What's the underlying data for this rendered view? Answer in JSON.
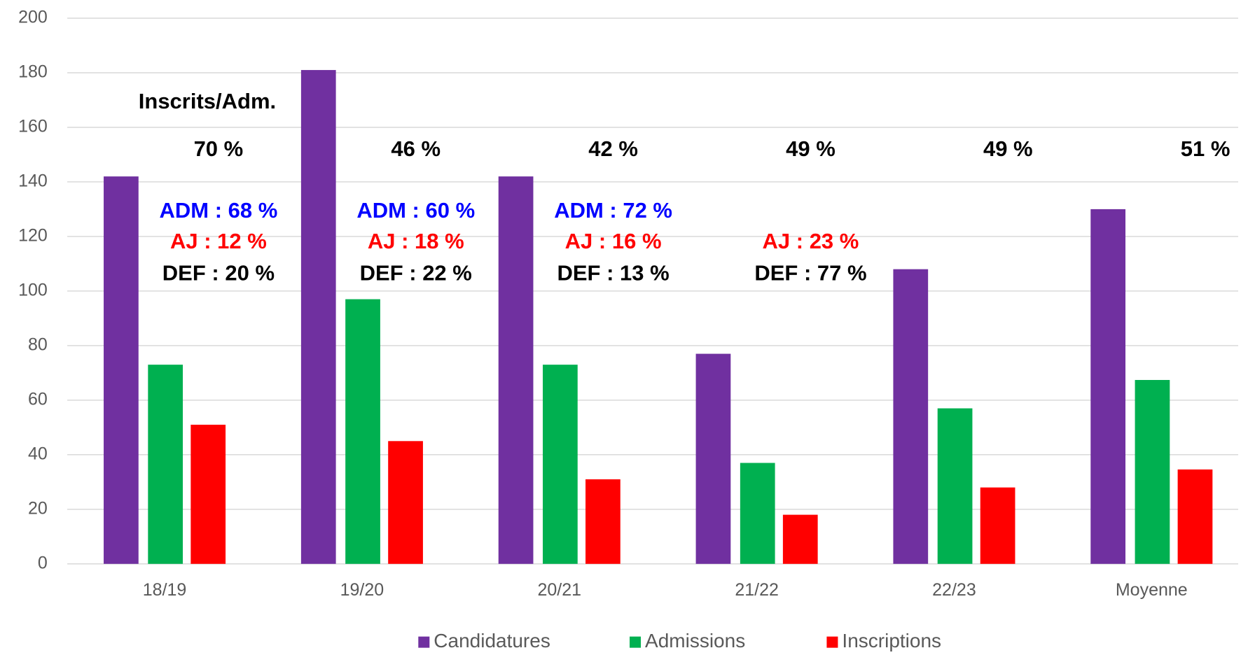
{
  "chart_data": {
    "type": "bar",
    "categories": [
      "18/19",
      "19/20",
      "20/21",
      "21/22",
      "22/23",
      "Moyenne"
    ],
    "series": [
      {
        "name": "Candidatures",
        "color": "#7030a0",
        "values": [
          142,
          181,
          142,
          77,
          108,
          130
        ]
      },
      {
        "name": "Admissions",
        "color": "#00b050",
        "values": [
          73,
          97,
          73,
          37,
          57,
          67.4
        ]
      },
      {
        "name": "Inscriptions",
        "color": "#ff0000",
        "values": [
          51,
          45,
          31,
          18,
          28,
          34.6
        ]
      }
    ],
    "ylim": [
      0,
      200
    ],
    "yticks": [
      0,
      20,
      40,
      60,
      80,
      100,
      120,
      140,
      160,
      180,
      200
    ],
    "grid": true,
    "annotations": {
      "header": "Inscrits/Adm.",
      "ratios": [
        "70 %",
        "46 %",
        "42 %",
        "49 %",
        "49 %",
        "51 %"
      ],
      "details": [
        [
          {
            "text": "ADM : 68 %",
            "color": "#0000ff"
          },
          {
            "text": "AJ : 12 %",
            "color": "#ff0000"
          },
          {
            "text": "DEF : 20 %",
            "color": "#000000"
          }
        ],
        [
          {
            "text": "ADM : 60 %",
            "color": "#0000ff"
          },
          {
            "text": "AJ : 18 %",
            "color": "#ff0000"
          },
          {
            "text": "DEF : 22 %",
            "color": "#000000"
          }
        ],
        [
          {
            "text": "ADM : 72 %",
            "color": "#0000ff"
          },
          {
            "text": "AJ : 16 %",
            "color": "#ff0000"
          },
          {
            "text": "DEF : 13 %",
            "color": "#000000"
          }
        ],
        [
          {
            "text": "AJ : 23 %",
            "color": "#ff0000"
          },
          {
            "text": "DEF : 77 %",
            "color": "#000000"
          }
        ],
        [],
        []
      ]
    }
  }
}
